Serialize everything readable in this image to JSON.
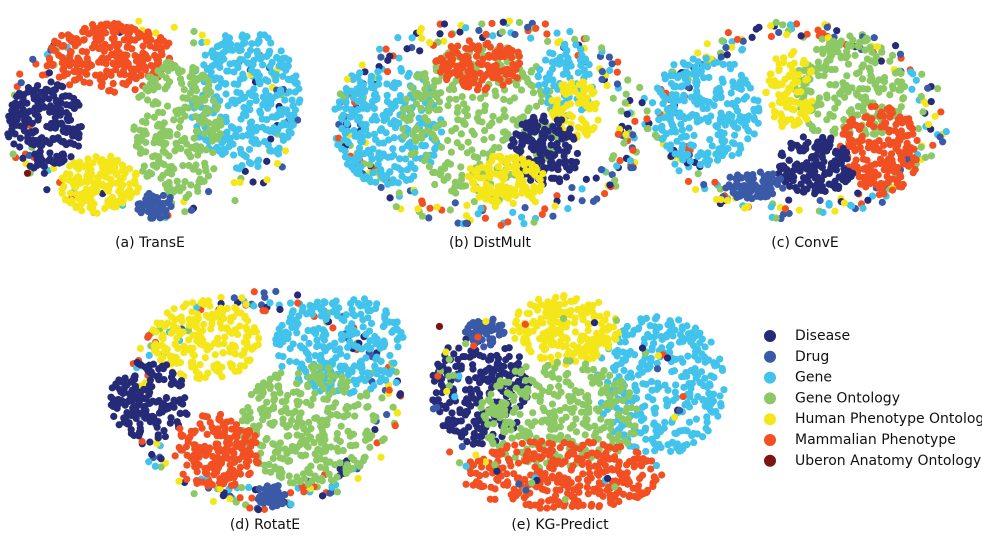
{
  "figure": {
    "panels": [
      {
        "caption": "(a) TransE"
      },
      {
        "caption": "(b) DistMult"
      },
      {
        "caption": "(c) ConvE"
      },
      {
        "caption": "(d) RotatE"
      },
      {
        "caption": "(e) KG-Predict"
      }
    ],
    "legend": [
      {
        "label": "Disease",
        "color": "#262b78"
      },
      {
        "label": "Drug",
        "color": "#3a5aa8"
      },
      {
        "label": "Gene",
        "color": "#41c3ec"
      },
      {
        "label": "Gene Ontology",
        "color": "#8cc864"
      },
      {
        "label": "Human Phenotype Ontology",
        "color": "#f5e61a"
      },
      {
        "label": "Mammalian Phenotype",
        "color": "#f25022"
      },
      {
        "label": "Uberon Anatomy Ontology",
        "color": "#7b1513"
      }
    ]
  }
}
